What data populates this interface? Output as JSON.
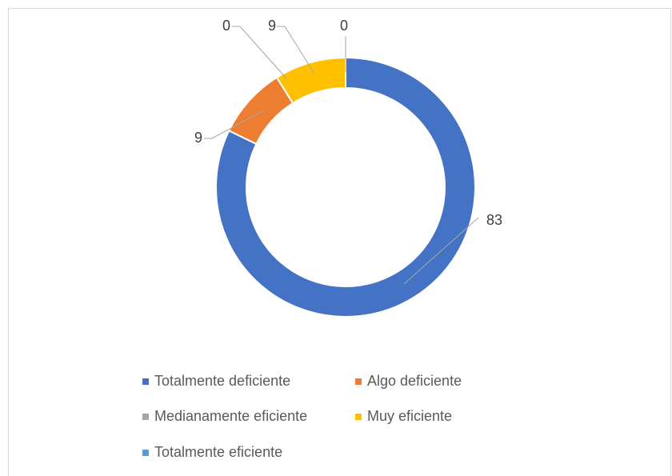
{
  "chart_data": {
    "type": "donut",
    "categories": [
      "Totalmente deficiente",
      "Algo deficiente",
      "Medianamente eficiente",
      "Muy eficiente",
      "Totalmente eficiente"
    ],
    "values": [
      83,
      9,
      0,
      9,
      0
    ],
    "colors": [
      "#4472c4",
      "#ed7d31",
      "#a5a5a5",
      "#ffc000",
      "#5b9bd5"
    ],
    "legend": "bottom"
  }
}
